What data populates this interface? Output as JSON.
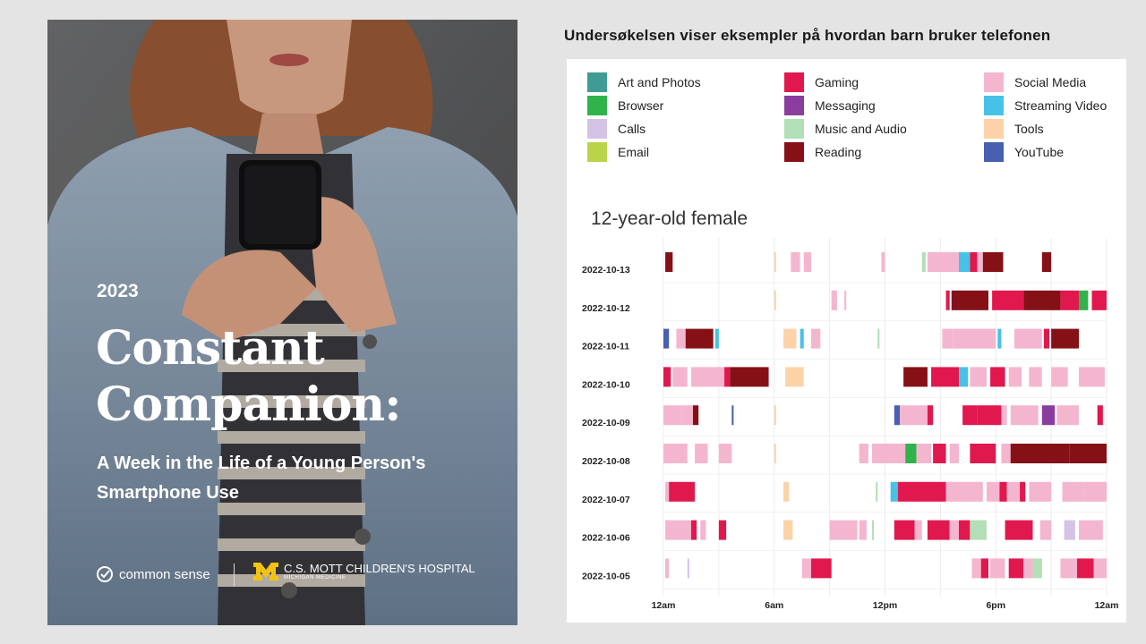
{
  "cover": {
    "year": "2023",
    "title_line1": "Constant",
    "title_line2": "Companion:",
    "subtitle_line1": "A Week in the Life of a Young Person's",
    "subtitle_line2": "Smartphone Use",
    "brand_commonsense": "common sense",
    "brand_mott": "C.S. MOTT CHILDREN'S HOSPITAL",
    "brand_mott_sub": "MICHIGAN MEDICINE",
    "colors": {
      "hair": "#9a5a36",
      "jacket": "#8ea3b8",
      "background": "#5f6062"
    }
  },
  "heading": "Undersøkelsen viser eksempler på hvordan barn bruker telefonen",
  "chart_data": {
    "type": "timeline",
    "title": "12-year-old female",
    "xticks": [
      "12am",
      "6am",
      "12pm",
      "6pm",
      "12am"
    ],
    "xlim_hours": [
      0,
      24
    ],
    "categories": [
      {
        "name": "Art and Photos",
        "color": "#3f9b94"
      },
      {
        "name": "Browser",
        "color": "#2fb34a"
      },
      {
        "name": "Calls",
        "color": "#d5c3e6"
      },
      {
        "name": "Email",
        "color": "#b9d44a"
      },
      {
        "name": "Gaming",
        "color": "#e0184e"
      },
      {
        "name": "Messaging",
        "color": "#8b3d9e"
      },
      {
        "name": "Music and Audio",
        "color": "#b2dfb5"
      },
      {
        "name": "Reading",
        "color": "#851117"
      },
      {
        "name": "Social Media",
        "color": "#f4b6cf"
      },
      {
        "name": "Streaming Video",
        "color": "#48c1e6"
      },
      {
        "name": "Tools",
        "color": "#fcd3a8"
      },
      {
        "name": "YouTube",
        "color": "#4860b0"
      }
    ],
    "rows": [
      {
        "date": "2022-10-13",
        "segments": [
          [
            0.1,
            0.5,
            "Reading"
          ],
          [
            6.0,
            6.1,
            "Tools"
          ],
          [
            6.9,
            7.4,
            "Social Media"
          ],
          [
            7.6,
            8.0,
            "Social Media"
          ],
          [
            11.8,
            12.0,
            "Social Media"
          ],
          [
            14.0,
            14.2,
            "Music and Audio"
          ],
          [
            14.3,
            16.0,
            "Social Media"
          ],
          [
            16.0,
            16.6,
            "Streaming Video"
          ],
          [
            16.6,
            17.0,
            "Gaming"
          ],
          [
            17.0,
            17.3,
            "Social Media"
          ],
          [
            17.3,
            18.4,
            "Reading"
          ],
          [
            20.5,
            21.0,
            "Reading"
          ]
        ]
      },
      {
        "date": "2022-10-12",
        "segments": [
          [
            6.0,
            6.1,
            "Tools"
          ],
          [
            9.1,
            9.4,
            "Social Media"
          ],
          [
            9.8,
            9.9,
            "Social Media"
          ],
          [
            15.3,
            15.5,
            "Gaming"
          ],
          [
            15.6,
            17.6,
            "Reading"
          ],
          [
            17.8,
            19.5,
            "Gaming"
          ],
          [
            19.5,
            21.5,
            "Reading"
          ],
          [
            21.5,
            22.5,
            "Gaming"
          ],
          [
            22.5,
            23.0,
            "Browser"
          ],
          [
            23.2,
            24.0,
            "Gaming"
          ]
        ]
      },
      {
        "date": "2022-10-11",
        "segments": [
          [
            0.0,
            0.3,
            "YouTube"
          ],
          [
            0.7,
            1.2,
            "Social Media"
          ],
          [
            1.2,
            2.7,
            "Reading"
          ],
          [
            2.8,
            3.0,
            "Streaming Video"
          ],
          [
            6.5,
            7.2,
            "Tools"
          ],
          [
            7.4,
            7.6,
            "Streaming Video"
          ],
          [
            8.0,
            8.5,
            "Social Media"
          ],
          [
            11.6,
            11.7,
            "Music and Audio"
          ],
          [
            15.1,
            15.7,
            "Social Media"
          ],
          [
            15.7,
            18.0,
            "Social Media"
          ],
          [
            18.1,
            18.3,
            "Streaming Video"
          ],
          [
            19.0,
            20.5,
            "Social Media"
          ],
          [
            20.6,
            20.9,
            "Gaming"
          ],
          [
            21.0,
            22.5,
            "Reading"
          ]
        ]
      },
      {
        "date": "2022-10-10",
        "segments": [
          [
            0.0,
            0.4,
            "Gaming"
          ],
          [
            0.5,
            1.3,
            "Social Media"
          ],
          [
            1.5,
            3.3,
            "Social Media"
          ],
          [
            3.3,
            3.6,
            "Gaming"
          ],
          [
            3.6,
            5.7,
            "Reading"
          ],
          [
            6.6,
            7.6,
            "Tools"
          ],
          [
            13.0,
            14.3,
            "Reading"
          ],
          [
            14.5,
            16.0,
            "Gaming"
          ],
          [
            16.0,
            16.5,
            "Streaming Video"
          ],
          [
            16.6,
            17.5,
            "Social Media"
          ],
          [
            17.7,
            18.5,
            "Gaming"
          ],
          [
            18.7,
            19.4,
            "Social Media"
          ],
          [
            19.8,
            20.5,
            "Social Media"
          ],
          [
            21.0,
            21.9,
            "Social Media"
          ],
          [
            22.5,
            23.9,
            "Social Media"
          ]
        ]
      },
      {
        "date": "2022-10-09",
        "segments": [
          [
            0.0,
            1.0,
            "Social Media"
          ],
          [
            1.0,
            1.6,
            "Social Media"
          ],
          [
            1.6,
            1.9,
            "Reading"
          ],
          [
            3.7,
            3.8,
            "YouTube"
          ],
          [
            6.0,
            6.1,
            "Tools"
          ],
          [
            12.5,
            12.8,
            "YouTube"
          ],
          [
            12.8,
            14.3,
            "Social Media"
          ],
          [
            14.3,
            14.6,
            "Gaming"
          ],
          [
            16.2,
            17.0,
            "Gaming"
          ],
          [
            17.0,
            18.3,
            "Gaming"
          ],
          [
            18.3,
            18.6,
            "Social Media"
          ],
          [
            18.8,
            20.3,
            "Social Media"
          ],
          [
            20.5,
            21.2,
            "Messaging"
          ],
          [
            21.3,
            22.5,
            "Social Media"
          ],
          [
            23.5,
            23.8,
            "Gaming"
          ]
        ]
      },
      {
        "date": "2022-10-08",
        "segments": [
          [
            0.0,
            1.3,
            "Social Media"
          ],
          [
            1.7,
            2.4,
            "Social Media"
          ],
          [
            3.0,
            3.7,
            "Social Media"
          ],
          [
            6.0,
            6.1,
            "Tools"
          ],
          [
            10.6,
            11.1,
            "Social Media"
          ],
          [
            11.3,
            13.1,
            "Social Media"
          ],
          [
            13.1,
            13.7,
            "Browser"
          ],
          [
            13.7,
            14.5,
            "Social Media"
          ],
          [
            14.6,
            15.3,
            "Gaming"
          ],
          [
            15.5,
            16.0,
            "Social Media"
          ],
          [
            16.6,
            18.0,
            "Gaming"
          ],
          [
            18.3,
            18.8,
            "Social Media"
          ],
          [
            18.8,
            22.0,
            "Reading"
          ],
          [
            22.0,
            24.0,
            "Reading"
          ]
        ]
      },
      {
        "date": "2022-10-07",
        "segments": [
          [
            0.1,
            0.3,
            "Social Media"
          ],
          [
            0.3,
            1.7,
            "Gaming"
          ],
          [
            6.5,
            6.8,
            "Tools"
          ],
          [
            11.5,
            11.6,
            "Music and Audio"
          ],
          [
            12.3,
            12.7,
            "Streaming Video"
          ],
          [
            12.7,
            15.3,
            "Gaming"
          ],
          [
            15.3,
            17.3,
            "Social Media"
          ],
          [
            17.5,
            18.2,
            "Social Media"
          ],
          [
            18.2,
            18.6,
            "Gaming"
          ],
          [
            18.6,
            19.3,
            "Social Media"
          ],
          [
            19.3,
            19.6,
            "Gaming"
          ],
          [
            19.8,
            21.0,
            "Social Media"
          ],
          [
            21.6,
            22.8,
            "Social Media"
          ],
          [
            22.8,
            24.0,
            "Social Media"
          ]
        ]
      },
      {
        "date": "2022-10-06",
        "segments": [
          [
            0.1,
            1.5,
            "Social Media"
          ],
          [
            1.5,
            1.8,
            "Gaming"
          ],
          [
            2.0,
            2.3,
            "Social Media"
          ],
          [
            3.0,
            3.4,
            "Gaming"
          ],
          [
            6.5,
            7.0,
            "Tools"
          ],
          [
            9.0,
            10.5,
            "Social Media"
          ],
          [
            10.6,
            11.0,
            "Social Media"
          ],
          [
            11.3,
            11.4,
            "Music and Audio"
          ],
          [
            12.5,
            13.6,
            "Gaming"
          ],
          [
            13.6,
            14.0,
            "Social Media"
          ],
          [
            14.3,
            15.5,
            "Gaming"
          ],
          [
            15.5,
            16.0,
            "Social Media"
          ],
          [
            16.0,
            16.6,
            "Gaming"
          ],
          [
            16.6,
            17.5,
            "Music and Audio"
          ],
          [
            18.5,
            20.0,
            "Gaming"
          ],
          [
            20.4,
            21.0,
            "Social Media"
          ],
          [
            21.7,
            22.3,
            "Calls"
          ],
          [
            22.5,
            23.8,
            "Social Media"
          ]
        ]
      },
      {
        "date": "2022-10-05",
        "segments": [
          [
            0.1,
            0.3,
            "Social Media"
          ],
          [
            1.3,
            1.4,
            "Calls"
          ],
          [
            7.5,
            8.0,
            "Social Media"
          ],
          [
            8.0,
            9.1,
            "Gaming"
          ],
          [
            16.7,
            17.2,
            "Social Media"
          ],
          [
            17.2,
            17.6,
            "Gaming"
          ],
          [
            17.7,
            18.5,
            "Social Media"
          ],
          [
            18.7,
            19.5,
            "Gaming"
          ],
          [
            19.5,
            20.0,
            "Social Media"
          ],
          [
            20.0,
            20.5,
            "Music and Audio"
          ],
          [
            21.5,
            22.4,
            "Social Media"
          ],
          [
            22.4,
            23.3,
            "Gaming"
          ],
          [
            23.3,
            24.0,
            "Social Media"
          ]
        ]
      }
    ]
  }
}
